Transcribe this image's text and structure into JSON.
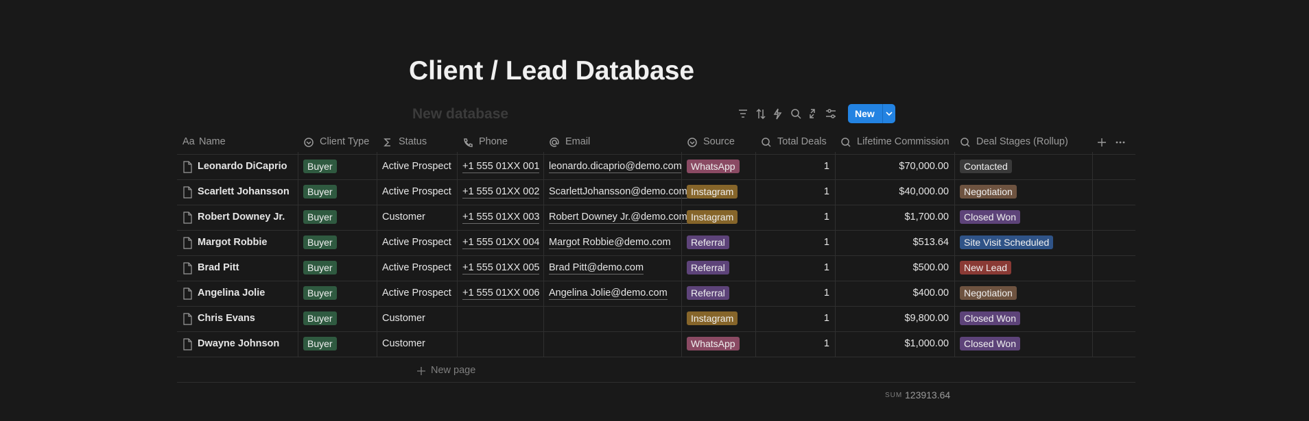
{
  "page": {
    "title": "Client / Lead Database",
    "view_placeholder": "New database",
    "new_button": "New",
    "name_column_icon": "Aa",
    "table": {
      "columns": [
        "Name",
        "Client Type",
        "Status",
        "Phone",
        "Email",
        "Source",
        "Total Deals",
        "Lifetime Commission",
        "Deal Stages (Rollup)"
      ],
      "rows": [
        [
          "Leonardo DiCaprio",
          "Buyer",
          "Active Prospect",
          "+1 555 01XX 001",
          "leonardo.dicaprio@demo.com",
          "WhatsApp",
          1,
          "$70,000.00",
          "Contacted"
        ],
        [
          "Scarlett Johansson",
          "Buyer",
          "Active Prospect",
          "+1 555 01XX 002",
          "ScarlettJohansson@demo.com",
          "Instagram",
          1,
          "$40,000.00",
          "Negotiation"
        ],
        [
          "Robert Downey Jr.",
          "Buyer",
          "Customer",
          "+1 555 01XX 003",
          "Robert Downey Jr.@demo.com",
          "Instagram",
          1,
          "$1,700.00",
          "Closed Won"
        ],
        [
          "Margot Robbie",
          "Buyer",
          "Active Prospect",
          "+1 555 01XX 004",
          "Margot Robbie@demo.com",
          "Referral",
          1,
          "$513.64",
          "Site Visit Scheduled"
        ],
        [
          "Brad Pitt",
          "Buyer",
          "Active Prospect",
          "+1 555 01XX 005",
          "Brad Pitt@demo.com",
          "Referral",
          1,
          "$500.00",
          "New Lead"
        ],
        [
          "Angelina Jolie",
          "Buyer",
          "Active Prospect",
          "+1 555 01XX 006",
          "Angelina Jolie@demo.com",
          "Referral",
          1,
          "$400.00",
          "Negotiation"
        ],
        [
          "Chris Evans",
          "Buyer",
          "Customer",
          null,
          null,
          "Instagram",
          1,
          "$9,800.00",
          "Closed Won"
        ],
        [
          "Dwayne Johnson",
          "Buyer",
          "Customer",
          null,
          null,
          "WhatsApp",
          1,
          "$1,000.00",
          "Closed Won"
        ]
      ],
      "tag_colors": {
        "Buyer": "#2f5a40",
        "WhatsApp": "#8a4a63",
        "Instagram": "#86652a",
        "Referral": "#5d4379",
        "Contacted": "#3a3a3a",
        "Negotiation": "#6e5340",
        "Closed Won": "#5d4379",
        "Site Visit Scheduled": "#2f5387",
        "New Lead": "#8a3a35"
      },
      "new_page": "New page",
      "sum_label": "SUM",
      "sum_value": "123913.64"
    }
  }
}
